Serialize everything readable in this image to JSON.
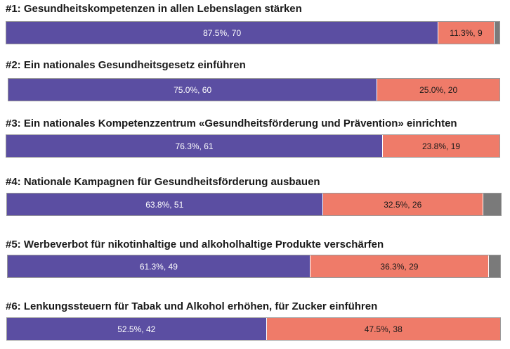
{
  "colors": {
    "ja": "#5b4ea2",
    "nein": "#ef7b69",
    "keine": "#7a7a7a"
  },
  "chart_data": [
    {
      "type": "bar",
      "stacked": true,
      "orientation": "horizontal",
      "title": "#1: Gesundheitskompetenzen in allen Lebenslagen stärken",
      "series": [
        {
          "color": "#5b4ea2",
          "value": 87.5,
          "count": 70,
          "label": "87.5%, 70"
        },
        {
          "color": "#ef7b69",
          "value": 11.3,
          "count": 9,
          "label": "11.3%, 9"
        },
        {
          "color": "#7a7a7a",
          "value": 1.2,
          "count": 1,
          "label": ""
        }
      ]
    },
    {
      "type": "bar",
      "stacked": true,
      "orientation": "horizontal",
      "title": "#2: Ein nationales Gesundheitsgesetz einführen",
      "series": [
        {
          "color": "#5b4ea2",
          "value": 75.0,
          "count": 60,
          "label": "75.0%, 60"
        },
        {
          "color": "#ef7b69",
          "value": 25.0,
          "count": 20,
          "label": "25.0%, 20"
        }
      ]
    },
    {
      "type": "bar",
      "stacked": true,
      "orientation": "horizontal",
      "title": "#3: Ein nationales Kompetenzzentrum «Gesundheitsförderung und Prävention» einrichten",
      "series": [
        {
          "color": "#5b4ea2",
          "value": 76.3,
          "count": 61,
          "label": "76.3%, 61"
        },
        {
          "color": "#ef7b69",
          "value": 23.8,
          "count": 19,
          "label": "23.8%, 19"
        }
      ]
    },
    {
      "type": "bar",
      "stacked": true,
      "orientation": "horizontal",
      "title": "#4: Nationale Kampagnen für Gesundheitsförderung ausbauen",
      "series": [
        {
          "color": "#5b4ea2",
          "value": 63.8,
          "count": 51,
          "label": "63.8%, 51"
        },
        {
          "color": "#ef7b69",
          "value": 32.5,
          "count": 26,
          "label": "32.5%, 26"
        },
        {
          "color": "#7a7a7a",
          "value": 3.7,
          "count": 3,
          "label": ""
        }
      ]
    },
    {
      "type": "bar",
      "stacked": true,
      "orientation": "horizontal",
      "title": "#5: Werbeverbot für nikotinhaltige und alkoholhaltige Produkte verschärfen",
      "series": [
        {
          "color": "#5b4ea2",
          "value": 61.3,
          "count": 49,
          "label": "61.3%, 49"
        },
        {
          "color": "#ef7b69",
          "value": 36.3,
          "count": 29,
          "label": "36.3%, 29"
        },
        {
          "color": "#7a7a7a",
          "value": 2.4,
          "count": 2,
          "label": ""
        }
      ]
    },
    {
      "type": "bar",
      "stacked": true,
      "orientation": "horizontal",
      "title": "#6: Lenkungssteuern für Tabak und Alkohol erhöhen, für Zucker einführen",
      "series": [
        {
          "color": "#5b4ea2",
          "value": 52.5,
          "count": 42,
          "label": "52.5%, 42"
        },
        {
          "color": "#ef7b69",
          "value": 47.5,
          "count": 38,
          "label": "47.5%, 38"
        }
      ]
    }
  ]
}
